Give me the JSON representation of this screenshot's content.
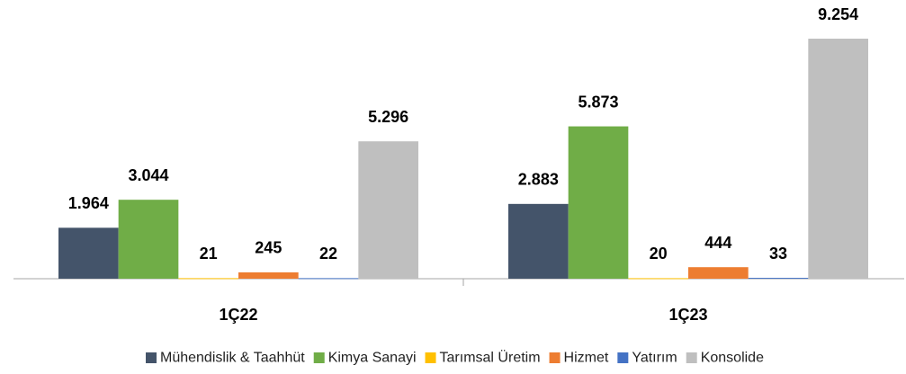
{
  "chart_data": {
    "type": "bar",
    "categories": [
      "1Ç22",
      "1Ç23"
    ],
    "series": [
      {
        "name": "Mühendislik & Taahhüt",
        "color": "#44546a",
        "values": [
          1964,
          2883
        ],
        "value_labels": [
          "1.964",
          "2.883"
        ]
      },
      {
        "name": "Kimya Sanayi",
        "color": "#70ad47",
        "values": [
          3044,
          5873
        ],
        "value_labels": [
          "3.044",
          "5.873"
        ]
      },
      {
        "name": "Tarımsal Üretim",
        "color": "#ffc000",
        "values": [
          21,
          20
        ],
        "value_labels": [
          "21",
          "20"
        ]
      },
      {
        "name": "Hizmet",
        "color": "#ed7d31",
        "values": [
          245,
          444
        ],
        "value_labels": [
          "245",
          "444"
        ]
      },
      {
        "name": "Yatırım",
        "color": "#4472c4",
        "values": [
          22,
          33
        ],
        "value_labels": [
          "22",
          "33"
        ]
      },
      {
        "name": "Konsolide",
        "color": "#bfbfbf",
        "values": [
          5296,
          9254
        ],
        "value_labels": [
          "5.296",
          "9.254"
        ]
      }
    ],
    "ylim": [
      0,
      10000
    ],
    "legend": "bottom"
  }
}
